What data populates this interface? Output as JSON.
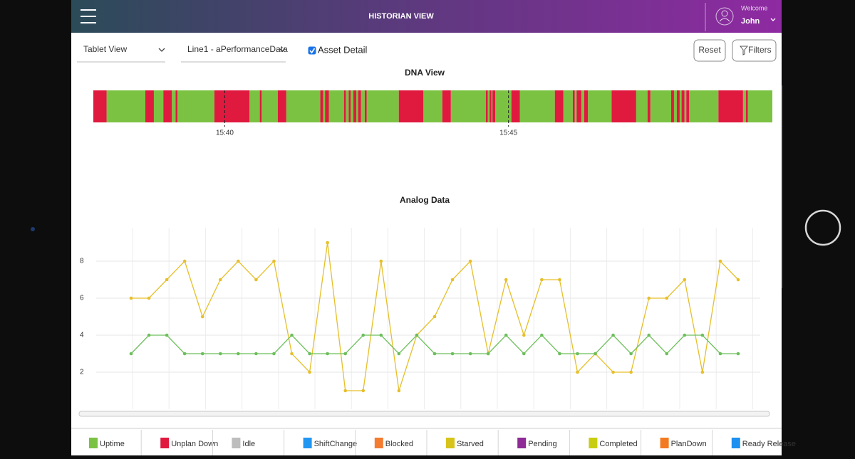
{
  "header": {
    "title": "HISTORIAN VIEW",
    "welcome": "Welcome",
    "user": "John"
  },
  "toolbar": {
    "view_select": "Tablet View",
    "data_select": "Line1 - aPerformanceData",
    "checkbox": "Asset Detail",
    "checked": true,
    "reset": "Reset",
    "filters": "Filters"
  },
  "dna": {
    "title": "DNA View",
    "xlim": [
      2261,
      2979
    ],
    "xticks": [
      {
        "value": 2400,
        "label": "15:40"
      },
      {
        "value": 2700,
        "label": "15:45"
      }
    ],
    "states": [
      {
        "name": "Uptime",
        "color": "#7cc242",
        "intervals": [
          [
            2275,
            2316
          ],
          [
            2325,
            2335
          ],
          [
            2344,
            2348
          ],
          [
            2350,
            2389
          ],
          [
            2426,
            2437
          ],
          [
            2439,
            2456
          ],
          [
            2465,
            2501
          ],
          [
            2504,
            2506
          ],
          [
            2510,
            2526
          ],
          [
            2528,
            2531
          ],
          [
            2533,
            2536
          ],
          [
            2539,
            2541
          ],
          [
            2544,
            2548
          ],
          [
            2550,
            2584
          ],
          [
            2610,
            2630
          ],
          [
            2639,
            2676
          ],
          [
            2678,
            2680
          ],
          [
            2682,
            2683
          ],
          [
            2686,
            2703
          ],
          [
            2712,
            2749
          ],
          [
            2758,
            2768
          ],
          [
            2770,
            2772
          ],
          [
            2777,
            2780
          ],
          [
            2784,
            2809
          ],
          [
            2835,
            2847
          ],
          [
            2850,
            2872
          ],
          [
            2875,
            2878
          ],
          [
            2881,
            2883
          ],
          [
            2886,
            2888
          ],
          [
            2891,
            2922
          ],
          [
            2948,
            2951
          ],
          [
            2953,
            2979
          ]
        ]
      },
      {
        "name": "Unplan Down",
        "color": "#e0193f",
        "intervals": [
          [
            2261,
            2275
          ],
          [
            2316,
            2325
          ],
          [
            2335,
            2344
          ],
          [
            2348,
            2350
          ],
          [
            2389,
            2426
          ],
          [
            2437,
            2439
          ],
          [
            2456,
            2465
          ],
          [
            2501,
            2504
          ],
          [
            2506,
            2510
          ],
          [
            2526,
            2528
          ],
          [
            2531,
            2533
          ],
          [
            2536,
            2539
          ],
          [
            2541,
            2544
          ],
          [
            2548,
            2550
          ],
          [
            2584,
            2610
          ],
          [
            2630,
            2639
          ],
          [
            2676,
            2678
          ],
          [
            2680,
            2682
          ],
          [
            2683,
            2686
          ],
          [
            2703,
            2712
          ],
          [
            2749,
            2758
          ],
          [
            2768,
            2770
          ],
          [
            2772,
            2777
          ],
          [
            2780,
            2784
          ],
          [
            2809,
            2835
          ],
          [
            2847,
            2850
          ],
          [
            2872,
            2875
          ],
          [
            2878,
            2881
          ],
          [
            2883,
            2886
          ],
          [
            2888,
            2891
          ],
          [
            2922,
            2948
          ],
          [
            2951,
            2953
          ]
        ]
      },
      {
        "name": "Idle",
        "color": "#bdbdbd",
        "intervals": []
      },
      {
        "name": "ShiftChange",
        "color": "#2196f3",
        "intervals": []
      },
      {
        "name": "Blocked",
        "color": "#f47b30",
        "intervals": []
      },
      {
        "name": "Starved",
        "color": "#d6c41b",
        "intervals": []
      },
      {
        "name": "Pending",
        "color": "#8e2b97",
        "intervals": []
      },
      {
        "name": "Completed",
        "color": "#c9cd12",
        "intervals": []
      },
      {
        "name": "PlanDown",
        "color": "#f37a20",
        "intervals": []
      },
      {
        "name": "Ready Release",
        "color": "#1e90f0",
        "intervals": []
      }
    ]
  },
  "chart_data": {
    "type": "line",
    "title": "Analog Data",
    "ylim": [
      0,
      10
    ],
    "yticks": [
      2,
      4,
      6,
      8
    ],
    "grid": true,
    "series": [
      {
        "color": "#e6bf2a",
        "values": [
          6,
          6,
          7,
          8,
          5,
          7,
          8,
          7,
          8,
          3,
          2,
          9,
          1,
          1,
          8,
          1,
          4,
          5,
          7,
          8,
          3,
          7,
          4,
          7,
          7,
          2,
          3,
          2,
          2,
          6,
          6,
          7,
          2,
          8,
          7
        ]
      },
      {
        "color": "#6cbf5a",
        "values": [
          3,
          4,
          4,
          3,
          3,
          3,
          3,
          3,
          3,
          4,
          3,
          3,
          3,
          4,
          4,
          3,
          4,
          3,
          3,
          3,
          3,
          4,
          3,
          4,
          3,
          3,
          3,
          4,
          3,
          4,
          3,
          4,
          4,
          3,
          3
        ]
      }
    ]
  }
}
